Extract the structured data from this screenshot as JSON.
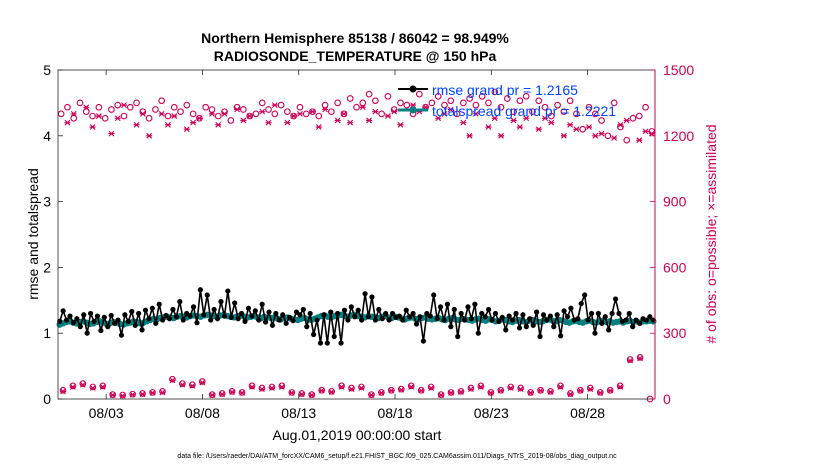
{
  "chart_data": {
    "type": "line",
    "title_line1": "Northern Hemisphere 85138 / 86042 = 98.949%",
    "title_line2": "RADIOSONDE_TEMPERATURE @ 150 hPa",
    "xlabel": "Aug.01,2019 00:00:00 start",
    "ylabel_left": "rmse and totalspread",
    "ylabel_right": "# of obs: o=possible; ×=assimilated",
    "footnote": "data file: /Users/raeder/DAI/ATM_forcXX/CAM6_setup/f.e21.FHIST_BGC.f09_025.CAM6assim.011/Diags_NTrS_2019-08/obs_diag_output.nc",
    "x_range_days": [
      0.5,
      31.5
    ],
    "x_tick_days": [
      3,
      8,
      13,
      18,
      23,
      28
    ],
    "x_tick_labels": [
      "08/03",
      "08/08",
      "08/13",
      "08/18",
      "08/23",
      "08/28"
    ],
    "ylim_left": [
      0,
      5
    ],
    "yticks_left": [
      "0",
      "1",
      "2",
      "3",
      "4",
      "5"
    ],
    "ylim_right": [
      0,
      1500
    ],
    "yticks_right": [
      "0",
      "300",
      "600",
      "900",
      "1200",
      "1500"
    ],
    "colors": {
      "rmse": "#000000",
      "spread": "#008080",
      "obs": "#cc0055",
      "legend_text": "#0044ff"
    },
    "legend": [
      {
        "name": "rmse grand pr = 1.2165",
        "series": "rmse"
      },
      {
        "name": "totalspread grand pr = 1.2221",
        "series": "spread"
      }
    ],
    "rmse": [
      1.18,
      1.34,
      1.2,
      1.26,
      1.16,
      1.22,
      1.1,
      1.28,
      1.0,
      1.3,
      1.18,
      1.26,
      1.04,
      1.24,
      1.1,
      1.27,
      1.15,
      1.2,
      0.97,
      1.28,
      1.18,
      1.33,
      1.12,
      1.3,
      1.05,
      1.35,
      1.22,
      1.38,
      1.15,
      1.44,
      1.2,
      1.27,
      1.22,
      1.36,
      1.25,
      1.48,
      1.2,
      1.3,
      1.26,
      1.4,
      1.16,
      1.66,
      1.28,
      1.58,
      1.2,
      1.36,
      1.22,
      1.48,
      1.26,
      1.64,
      1.24,
      1.46,
      1.22,
      1.3,
      1.18,
      1.38,
      1.26,
      1.34,
      1.2,
      1.44,
      1.17,
      1.32,
      1.12,
      1.3,
      1.2,
      1.28,
      1.15,
      1.24,
      1.19,
      1.32,
      1.28,
      1.36,
      1.1,
      1.3,
      0.98,
      1.2,
      0.85,
      1.28,
      0.85,
      1.32,
      0.95,
      1.3,
      0.85,
      1.35,
      1.2,
      1.4,
      1.25,
      1.35,
      1.2,
      1.6,
      1.25,
      1.55,
      1.2,
      1.36,
      1.22,
      1.3,
      1.2,
      1.3,
      1.24,
      1.26,
      1.2,
      1.35,
      1.25,
      1.3,
      1.14,
      1.25,
      0.88,
      1.3,
      1.26,
      1.58,
      1.22,
      1.4,
      1.2,
      1.44,
      1.1,
      1.36,
      0.95,
      1.3,
      1.2,
      1.4,
      1.22,
      1.44,
      1.0,
      1.3,
      1.25,
      1.36,
      1.2,
      1.3,
      1.18,
      1.24,
      1.05,
      1.26,
      1.2,
      1.3,
      1.08,
      1.28,
      1.1,
      1.22,
      1.12,
      1.32,
      0.95,
      1.28,
      1.2,
      1.26,
      1.1,
      1.28,
      0.96,
      1.34,
      1.25,
      1.38,
      1.2,
      1.22,
      1.45,
      1.58,
      1.2,
      1.3,
      1.0,
      1.3,
      1.15,
      1.25,
      1.05,
      1.3,
      1.52,
      1.3,
      1.18,
      1.2,
      1.3,
      1.1,
      1.2,
      1.15,
      1.22,
      1.2,
      1.25,
      1.2
    ],
    "spread": [
      1.13,
      1.15,
      1.17,
      1.18,
      1.16,
      1.15,
      1.17,
      1.18,
      1.16,
      1.14,
      1.15,
      1.17,
      1.18,
      1.16,
      1.14,
      1.15,
      1.17,
      1.16,
      1.14,
      1.13,
      1.15,
      1.16,
      1.18,
      1.17,
      1.15,
      1.16,
      1.18,
      1.2,
      1.22,
      1.21,
      1.23,
      1.24,
      1.25,
      1.24,
      1.23,
      1.25,
      1.26,
      1.25,
      1.24,
      1.26,
      1.27,
      1.26,
      1.25,
      1.27,
      1.28,
      1.27,
      1.26,
      1.25,
      1.27,
      1.28,
      1.26,
      1.25,
      1.24,
      1.26,
      1.27,
      1.25,
      1.24,
      1.25,
      1.26,
      1.24,
      1.23,
      1.25,
      1.24,
      1.23,
      1.24,
      1.22,
      1.21,
      1.23,
      1.24,
      1.22,
      1.21,
      1.2,
      1.22,
      1.23,
      1.21,
      1.2,
      1.22,
      1.24,
      1.26,
      1.27,
      1.25,
      1.24,
      1.26,
      1.27,
      1.28,
      1.26,
      1.25,
      1.27,
      1.28,
      1.26,
      1.25,
      1.24,
      1.26,
      1.25,
      1.24,
      1.23,
      1.25,
      1.26,
      1.24,
      1.23,
      1.25,
      1.24,
      1.22,
      1.21,
      1.23,
      1.24,
      1.22,
      1.21,
      1.23,
      1.24,
      1.22,
      1.21,
      1.22,
      1.23,
      1.21,
      1.2,
      1.22,
      1.23,
      1.21,
      1.2,
      1.22,
      1.21,
      1.2,
      1.19,
      1.21,
      1.22,
      1.2,
      1.19,
      1.21,
      1.2,
      1.18,
      1.19,
      1.21,
      1.2,
      1.18,
      1.17,
      1.19,
      1.2,
      1.18,
      1.17,
      1.19,
      1.2,
      1.18,
      1.17,
      1.18,
      1.2,
      1.21,
      1.19,
      1.18,
      1.2,
      1.19,
      1.17,
      1.16,
      1.18,
      1.19,
      1.17,
      1.16,
      1.18,
      1.19,
      1.17,
      1.16,
      1.18,
      1.19,
      1.17,
      1.18,
      1.16,
      1.17,
      1.18,
      1.16,
      1.18,
      1.19,
      1.17,
      1.18,
      1.16,
      1.18,
      1.18,
      1.19,
      1.18
    ],
    "obs_possible": [
      1300,
      1330,
      1280,
      1350,
      1310,
      1290,
      1330,
      1280,
      1320,
      1340,
      1290,
      1330,
      1350,
      1310,
      1280,
      1320,
      1360,
      1290,
      1330,
      1310,
      1340,
      1300,
      1280,
      1330,
      1320,
      1290,
      1310,
      1270,
      1330,
      1320,
      1290,
      1300,
      1350,
      1320,
      1300,
      1340,
      1310,
      1290,
      1330,
      1300,
      1310,
      1290,
      1340,
      1310,
      1350,
      1300,
      1370,
      1330,
      1350,
      1390,
      1360,
      1300,
      1380,
      1320,
      1350,
      1340,
      1300,
      1390,
      1330,
      1350,
      1380,
      1340,
      1360,
      1300,
      1350,
      1370,
      1340,
      1380,
      1350,
      1400,
      1330,
      1370,
      1310,
      1360,
      1380,
      1310,
      1360,
      1330,
      1290,
      1340,
      1310,
      1360,
      1300,
      1230,
      1330,
      1300,
      1270,
      1200,
      1350,
      1240,
      1180,
      1280,
      1290,
      1330,
      1220
    ],
    "obs_assimilated": [
      0,
      1260,
      1300,
      0,
      1330,
      1240,
      1290,
      0,
      1210,
      1280,
      1340,
      0,
      1250,
      1300,
      1200,
      0,
      1300,
      1250,
      1290,
      0,
      1230,
      1260,
      1280,
      0,
      1300,
      1250,
      1300,
      0,
      1320,
      1270,
      1290,
      0,
      1310,
      1260,
      1340,
      0,
      1260,
      1290,
      1300,
      0,
      1310,
      1240,
      1320,
      0,
      1270,
      1300,
      1260,
      0,
      1330,
      1270,
      1310,
      0,
      1290,
      1310,
      1250,
      0,
      1340,
      1310,
      1330,
      0,
      1280,
      1300,
      1320,
      0,
      1260,
      1200,
      1300,
      0,
      1240,
      1280,
      1200,
      0,
      1270,
      1240,
      1280,
      0,
      1230,
      1280,
      1260,
      0,
      1200,
      1250,
      1230,
      0,
      1240,
      1200,
      1210,
      0,
      1190,
      1250,
      1270,
      0,
      1180,
      1220,
      1210
    ],
    "obs_possible_low": [
      40,
      60,
      70,
      55,
      60,
      20,
      18,
      22,
      25,
      30,
      35,
      90,
      70,
      65,
      80,
      20,
      25,
      35,
      30,
      60,
      50,
      55,
      60,
      30,
      25,
      20,
      40,
      35,
      60,
      50,
      55,
      20,
      30,
      40,
      45,
      60,
      40,
      55,
      20,
      30,
      35,
      50,
      60,
      30,
      40,
      55,
      50,
      30,
      40,
      35,
      60,
      25,
      40,
      50,
      30,
      40,
      60,
      180,
      190,
      0
    ],
    "obs_assimilated_low": [
      35,
      55,
      65,
      50,
      55,
      18,
      15,
      20,
      22,
      28,
      30,
      85,
      65,
      60,
      75,
      18,
      22,
      32,
      28,
      55,
      45,
      50,
      55,
      28,
      22,
      18,
      38,
      32,
      55,
      45,
      50,
      18,
      28,
      38,
      42,
      55,
      38,
      50,
      18,
      28,
      32,
      45,
      55,
      28,
      38,
      50,
      45,
      28,
      38,
      32,
      55,
      22,
      38,
      45,
      28,
      38,
      55,
      175,
      185,
      0
    ]
  }
}
